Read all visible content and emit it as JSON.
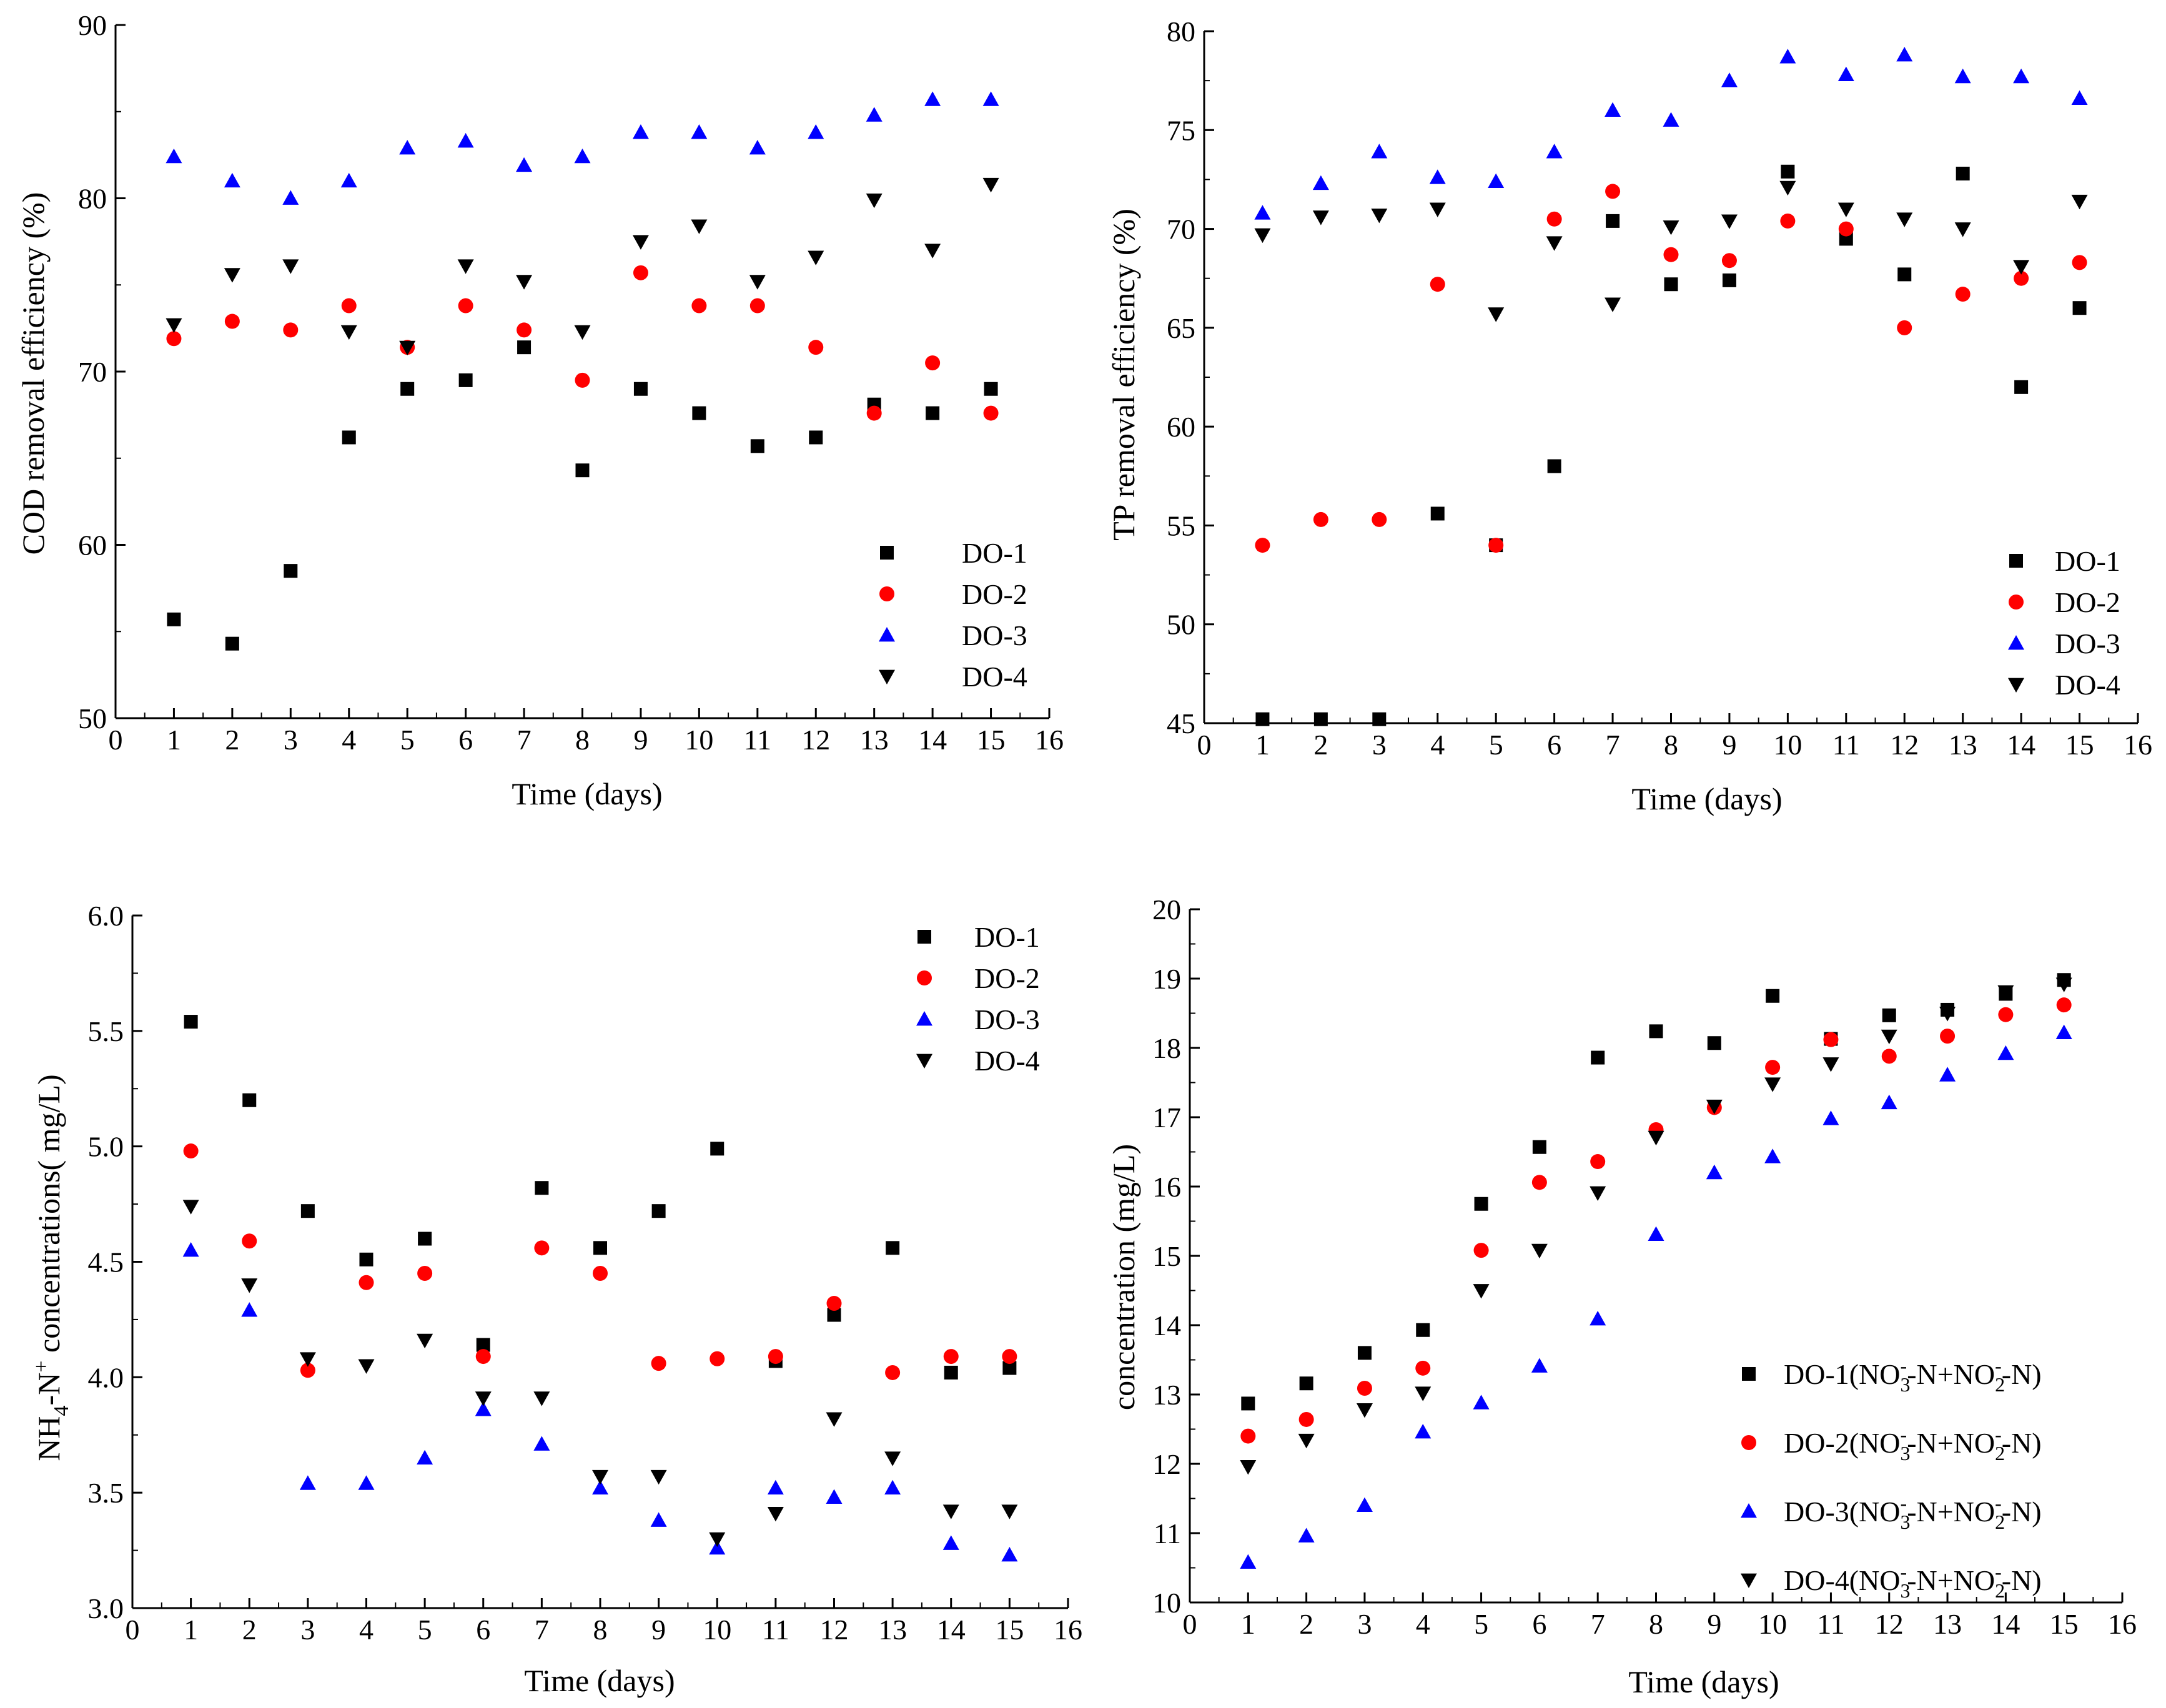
{
  "colors": {
    "DO-1": "#000000",
    "DO-2": "#ff0000",
    "DO-3": "#0000ff",
    "DO-4": "#000000"
  },
  "chart_data": [
    {
      "type": "scatter",
      "id": "cod",
      "xlabel": "Time (days)",
      "ylabel": "COD removal efficiency (%)",
      "xlim": [
        0,
        16
      ],
      "ylim": [
        50,
        90
      ],
      "xticks": [
        0,
        1,
        2,
        3,
        4,
        5,
        6,
        7,
        8,
        9,
        10,
        11,
        12,
        13,
        14,
        15,
        16
      ],
      "yticks": [
        50,
        60,
        70,
        80,
        90
      ],
      "ytick_labels": [
        "50",
        "60",
        "70",
        "80",
        "90"
      ],
      "legend_position": "bottom-right",
      "legend_labels": [
        "DO-1",
        "DO-2",
        "DO-3",
        "DO-4"
      ],
      "x": [
        1,
        2,
        3,
        4,
        5,
        6,
        7,
        8,
        9,
        10,
        11,
        12,
        13,
        14,
        15
      ],
      "series": [
        {
          "name": "DO-1",
          "marker": "square",
          "values": [
            55.7,
            54.3,
            58.5,
            66.2,
            69.0,
            69.5,
            71.4,
            64.3,
            69.0,
            67.6,
            65.7,
            66.2,
            68.1,
            67.6,
            69.0
          ]
        },
        {
          "name": "DO-2",
          "marker": "circle",
          "values": [
            71.9,
            72.9,
            72.4,
            73.8,
            71.4,
            73.8,
            72.4,
            69.5,
            75.7,
            73.8,
            73.8,
            71.4,
            67.6,
            70.5,
            67.6
          ]
        },
        {
          "name": "DO-3",
          "marker": "triangle-up",
          "values": [
            82.4,
            81.0,
            80.0,
            81.0,
            82.9,
            83.3,
            81.9,
            82.4,
            83.8,
            83.8,
            82.9,
            83.8,
            84.8,
            85.7,
            85.7
          ]
        },
        {
          "name": "DO-4",
          "marker": "triangle-down",
          "values": [
            72.7,
            75.6,
            76.1,
            72.3,
            71.4,
            76.1,
            75.2,
            72.3,
            77.5,
            78.4,
            75.2,
            76.6,
            79.9,
            77.0,
            80.8
          ]
        }
      ]
    },
    {
      "type": "scatter",
      "id": "tp",
      "xlabel": "Time (days)",
      "ylabel": "TP removal efficiency (%)",
      "xlim": [
        0,
        16
      ],
      "ylim": [
        45,
        80
      ],
      "xticks": [
        0,
        1,
        2,
        3,
        4,
        5,
        6,
        7,
        8,
        9,
        10,
        11,
        12,
        13,
        14,
        15,
        16
      ],
      "yticks": [
        45,
        50,
        55,
        60,
        65,
        70,
        75,
        80
      ],
      "ytick_labels": [
        "45",
        "50",
        "55",
        "60",
        "65",
        "70",
        "75",
        "80"
      ],
      "legend_position": "bottom-right",
      "legend_labels": [
        "DO-1",
        "DO-2",
        "DO-3",
        "DO-4"
      ],
      "x": [
        1,
        2,
        3,
        4,
        5,
        6,
        7,
        8,
        9,
        10,
        11,
        12,
        13,
        14,
        15
      ],
      "series": [
        {
          "name": "DO-1",
          "marker": "square",
          "values": [
            45.2,
            45.2,
            45.2,
            55.6,
            54.0,
            58.0,
            70.4,
            67.2,
            67.4,
            72.9,
            69.5,
            67.7,
            72.8,
            62.0,
            66.0
          ]
        },
        {
          "name": "DO-2",
          "marker": "circle",
          "values": [
            54.0,
            55.3,
            55.3,
            67.2,
            54.0,
            70.5,
            71.9,
            68.7,
            68.4,
            70.4,
            70.0,
            65.0,
            66.7,
            67.5,
            68.3
          ]
        },
        {
          "name": "DO-3",
          "marker": "triangle-up",
          "values": [
            70.8,
            72.3,
            73.9,
            72.6,
            72.4,
            73.9,
            76.0,
            75.5,
            77.5,
            78.7,
            77.8,
            78.8,
            77.7,
            77.7,
            76.6
          ]
        },
        {
          "name": "DO-4",
          "marker": "triangle-down",
          "values": [
            69.7,
            70.6,
            70.7,
            71.0,
            65.7,
            69.3,
            66.2,
            70.1,
            70.4,
            72.1,
            71.0,
            70.5,
            70.0,
            68.1,
            71.4
          ]
        }
      ]
    },
    {
      "type": "scatter",
      "id": "nh4",
      "xlabel": "Time (days)",
      "ylabel_parts": {
        "a": "NH",
        "b": "4",
        "c": "-N",
        "d": "+",
        "e": " concentrations( mg/L)"
      },
      "xlim": [
        0,
        16
      ],
      "ylim": [
        3.0,
        6.0
      ],
      "xticks": [
        0,
        1,
        2,
        3,
        4,
        5,
        6,
        7,
        8,
        9,
        10,
        11,
        12,
        13,
        14,
        15,
        16
      ],
      "yticks": [
        3.0,
        3.5,
        4.0,
        4.5,
        5.0,
        5.5,
        6.0
      ],
      "ytick_labels": [
        "3.0",
        "3.5",
        "4.0",
        "4.5",
        "5.0",
        "5.5",
        "6.0"
      ],
      "legend_position": "top-right",
      "legend_labels": [
        "DO-1",
        "DO-2",
        "DO-3",
        "DO-4"
      ],
      "x": [
        1,
        2,
        3,
        4,
        5,
        6,
        7,
        8,
        9,
        10,
        11,
        12,
        13,
        14,
        15
      ],
      "series": [
        {
          "name": "DO-1",
          "marker": "square",
          "values": [
            5.54,
            5.2,
            4.72,
            4.51,
            4.6,
            4.14,
            4.82,
            4.56,
            4.72,
            4.99,
            4.07,
            4.27,
            4.56,
            4.02,
            4.04
          ]
        },
        {
          "name": "DO-2",
          "marker": "circle",
          "values": [
            4.98,
            4.59,
            4.03,
            4.41,
            4.45,
            4.09,
            4.56,
            4.45,
            4.06,
            4.08,
            4.09,
            4.32,
            4.02,
            4.09,
            4.09
          ]
        },
        {
          "name": "DO-3",
          "marker": "triangle-up",
          "values": [
            4.55,
            4.29,
            3.54,
            3.54,
            3.65,
            3.86,
            3.71,
            3.52,
            3.38,
            3.26,
            3.52,
            3.48,
            3.52,
            3.28,
            3.23
          ]
        },
        {
          "name": "DO-4",
          "marker": "triangle-down",
          "values": [
            4.74,
            4.4,
            4.08,
            4.05,
            4.16,
            3.91,
            3.91,
            3.57,
            3.57,
            3.3,
            3.41,
            3.82,
            3.65,
            3.42,
            3.42
          ]
        }
      ]
    },
    {
      "type": "scatter",
      "id": "nox",
      "xlabel": "Time (days)",
      "ylabel": "concentration (mg/L)",
      "xlim": [
        0,
        16
      ],
      "ylim": [
        10,
        20
      ],
      "xticks": [
        0,
        1,
        2,
        3,
        4,
        5,
        6,
        7,
        8,
        9,
        10,
        11,
        12,
        13,
        14,
        15,
        16
      ],
      "yticks": [
        10,
        11,
        12,
        13,
        14,
        15,
        16,
        17,
        18,
        19,
        20
      ],
      "ytick_labels": [
        "10",
        "11",
        "12",
        "13",
        "14",
        "15",
        "16",
        "17",
        "18",
        "19",
        "20"
      ],
      "legend_position": "bottom-right",
      "legend_labels": [
        "DO-1",
        "DO-2",
        "DO-3",
        "DO-4"
      ],
      "legend_suffix": {
        "a": "(NO",
        "b": "3",
        "c": "-",
        "d": "-N+NO",
        "e": "2",
        "f": "-",
        "g": "-N)"
      },
      "x": [
        1,
        2,
        3,
        4,
        5,
        6,
        7,
        8,
        9,
        10,
        11,
        12,
        13,
        14,
        15
      ],
      "series": [
        {
          "name": "DO-1",
          "marker": "square",
          "values": [
            12.87,
            13.16,
            13.6,
            13.93,
            15.75,
            16.57,
            17.86,
            18.24,
            18.07,
            18.75,
            18.13,
            18.47,
            18.55,
            18.78,
            18.98
          ]
        },
        {
          "name": "DO-2",
          "marker": "circle",
          "values": [
            12.4,
            12.64,
            13.09,
            13.38,
            15.08,
            16.06,
            16.36,
            16.82,
            17.14,
            17.72,
            18.12,
            17.88,
            18.17,
            18.48,
            18.62
          ]
        },
        {
          "name": "DO-3",
          "marker": "triangle-up",
          "values": [
            10.58,
            10.96,
            11.4,
            12.46,
            12.88,
            13.41,
            14.09,
            15.31,
            16.2,
            16.43,
            16.98,
            17.21,
            17.61,
            17.92,
            18.22
          ]
        },
        {
          "name": "DO-4",
          "marker": "triangle-down",
          "values": [
            11.96,
            12.34,
            12.78,
            13.02,
            14.5,
            15.08,
            15.91,
            16.71,
            17.16,
            17.48,
            17.77,
            18.17,
            18.5,
            18.81,
            18.92
          ]
        }
      ]
    }
  ]
}
